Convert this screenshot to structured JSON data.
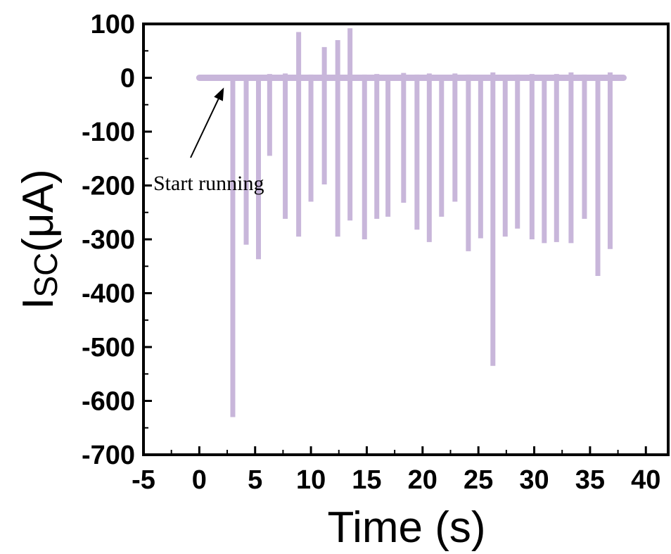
{
  "chart_data": {
    "type": "line",
    "xlabel": "Time (s)",
    "ylabel_main": "I",
    "ylabel_sub": "SC",
    "ylabel_unit": "(μA)",
    "xlim": [
      -5,
      42
    ],
    "ylim": [
      -700,
      100
    ],
    "xticks": [
      -5,
      0,
      5,
      10,
      15,
      20,
      25,
      30,
      35,
      40
    ],
    "yticks": [
      100,
      0,
      -100,
      -200,
      -300,
      -400,
      -500,
      -600,
      -700
    ],
    "grid": false,
    "legend": "none",
    "series_color": "#C8B6DA",
    "baseline_range": [
      0,
      38
    ],
    "series": [
      {
        "negative_peaks": [
          {
            "t": 3.0,
            "v": -630
          },
          {
            "t": 4.2,
            "v": -310
          },
          {
            "t": 5.3,
            "v": -337
          },
          {
            "t": 6.3,
            "v": -145
          },
          {
            "t": 7.7,
            "v": -262
          },
          {
            "t": 8.9,
            "v": -295
          },
          {
            "t": 10.0,
            "v": -230
          },
          {
            "t": 11.2,
            "v": -198
          },
          {
            "t": 12.4,
            "v": -295
          },
          {
            "t": 13.5,
            "v": -265
          },
          {
            "t": 14.8,
            "v": -300
          },
          {
            "t": 15.9,
            "v": -262
          },
          {
            "t": 16.9,
            "v": -258
          },
          {
            "t": 18.3,
            "v": -232
          },
          {
            "t": 19.5,
            "v": -282
          },
          {
            "t": 20.6,
            "v": -305
          },
          {
            "t": 21.7,
            "v": -258
          },
          {
            "t": 22.9,
            "v": -230
          },
          {
            "t": 24.1,
            "v": -322
          },
          {
            "t": 25.2,
            "v": -298
          },
          {
            "t": 26.3,
            "v": -535
          },
          {
            "t": 27.4,
            "v": -295
          },
          {
            "t": 28.5,
            "v": -280
          },
          {
            "t": 29.8,
            "v": -300
          },
          {
            "t": 30.9,
            "v": -307
          },
          {
            "t": 32.0,
            "v": -305
          },
          {
            "t": 33.3,
            "v": -307
          },
          {
            "t": 34.5,
            "v": -262
          },
          {
            "t": 35.7,
            "v": -368
          },
          {
            "t": 36.8,
            "v": -318
          }
        ],
        "positive_peaks": [
          {
            "t": 8.9,
            "v": 85
          },
          {
            "t": 11.2,
            "v": 57
          },
          {
            "t": 12.4,
            "v": 70
          },
          {
            "t": 13.5,
            "v": 92
          }
        ],
        "small_bumps": [
          {
            "t": 6.3,
            "v": 7
          },
          {
            "t": 7.7,
            "v": 8
          },
          {
            "t": 10.0,
            "v": 6
          },
          {
            "t": 14.8,
            "v": 6
          },
          {
            "t": 15.9,
            "v": 7
          },
          {
            "t": 18.3,
            "v": 9
          },
          {
            "t": 19.5,
            "v": 6
          },
          {
            "t": 20.6,
            "v": 8
          },
          {
            "t": 22.9,
            "v": 8
          },
          {
            "t": 24.1,
            "v": 6
          },
          {
            "t": 26.3,
            "v": 10
          },
          {
            "t": 28.5,
            "v": 6
          },
          {
            "t": 29.8,
            "v": 7
          },
          {
            "t": 32.0,
            "v": 7
          },
          {
            "t": 33.3,
            "v": 10
          },
          {
            "t": 34.5,
            "v": 6
          },
          {
            "t": 36.8,
            "v": 10
          }
        ]
      }
    ],
    "annotations": [
      {
        "text": "Start running",
        "arrow_to": {
          "t": 2.2,
          "v": -5
        }
      }
    ]
  }
}
